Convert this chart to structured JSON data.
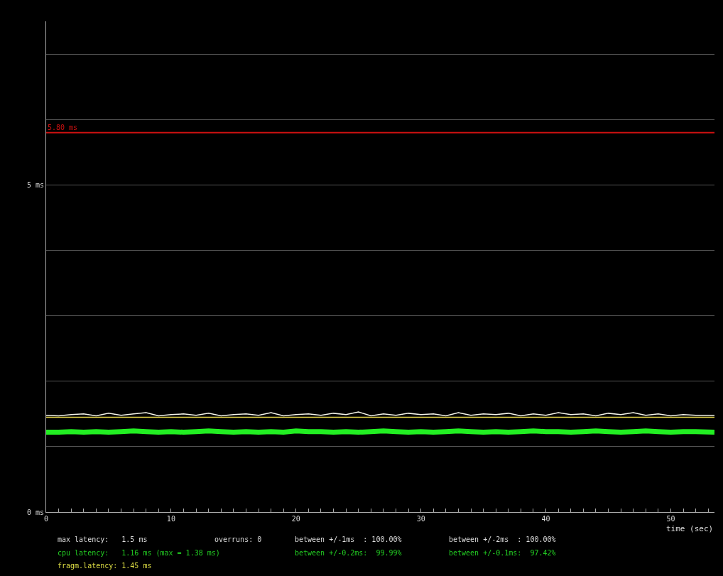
{
  "chart_data": {
    "type": "line",
    "xlabel": "time (sec)",
    "x": [
      0,
      1,
      2,
      3,
      4,
      5,
      6,
      7,
      8,
      9,
      10,
      11,
      12,
      13,
      14,
      15,
      16,
      17,
      18,
      19,
      20,
      21,
      22,
      23,
      24,
      25,
      26,
      27,
      28,
      29,
      30,
      31,
      32,
      33,
      34,
      35,
      36,
      37,
      38,
      39,
      40,
      41,
      42,
      43,
      44,
      45,
      46,
      47,
      48,
      49,
      50,
      51,
      52,
      53.5
    ],
    "series": [
      {
        "color": "#f4f4e8",
        "values": [
          1.48,
          1.47,
          1.49,
          1.5,
          1.47,
          1.51,
          1.48,
          1.5,
          1.52,
          1.47,
          1.49,
          1.5,
          1.48,
          1.51,
          1.47,
          1.49,
          1.5,
          1.48,
          1.52,
          1.47,
          1.49,
          1.5,
          1.48,
          1.51,
          1.49,
          1.53,
          1.47,
          1.5,
          1.48,
          1.51,
          1.49,
          1.5,
          1.47,
          1.52,
          1.48,
          1.5,
          1.49,
          1.51,
          1.47,
          1.5,
          1.48,
          1.52,
          1.49,
          1.5,
          1.47,
          1.51,
          1.49,
          1.52,
          1.48,
          1.5,
          1.47,
          1.49,
          1.48,
          1.48
        ]
      },
      {
        "color": "#e8d84a",
        "x": [
          0,
          53.5
        ],
        "values": [
          1.45,
          1.45
        ]
      },
      {
        "color": "#22ee22",
        "values": [
          1.22,
          1.22,
          1.23,
          1.22,
          1.23,
          1.22,
          1.23,
          1.24,
          1.23,
          1.22,
          1.23,
          1.22,
          1.23,
          1.24,
          1.23,
          1.22,
          1.23,
          1.22,
          1.23,
          1.22,
          1.24,
          1.23,
          1.23,
          1.22,
          1.23,
          1.22,
          1.23,
          1.24,
          1.23,
          1.22,
          1.23,
          1.22,
          1.23,
          1.24,
          1.23,
          1.22,
          1.23,
          1.22,
          1.23,
          1.24,
          1.23,
          1.23,
          1.22,
          1.23,
          1.24,
          1.23,
          1.22,
          1.23,
          1.24,
          1.23,
          1.22,
          1.23,
          1.23,
          1.22
        ]
      }
    ],
    "xlim": [
      0,
      53.5
    ],
    "xticks": [
      0,
      {
        "value": 1,
        "label": null
      },
      {
        "value": 2,
        "label": null
      },
      {
        "value": 3,
        "label": null
      },
      {
        "value": 4,
        "label": null
      },
      {
        "value": 5,
        "label": null
      },
      {
        "value": 6,
        "label": null
      },
      {
        "value": 7,
        "label": null
      },
      {
        "value": 8,
        "label": null
      },
      {
        "value": 9,
        "label": null
      },
      10,
      {
        "value": 11,
        "label": null
      },
      {
        "value": 12,
        "label": null
      },
      {
        "value": 13,
        "label": null
      },
      {
        "value": 14,
        "label": null
      },
      {
        "value": 15,
        "label": null
      },
      {
        "value": 16,
        "label": null
      },
      {
        "value": 17,
        "label": null
      },
      {
        "value": 18,
        "label": null
      },
      {
        "value": 19,
        "label": null
      },
      20,
      {
        "value": 21,
        "label": null
      },
      {
        "value": 22,
        "label": null
      },
      {
        "value": 23,
        "label": null
      },
      {
        "value": 24,
        "label": null
      },
      {
        "value": 25,
        "label": null
      },
      {
        "value": 26,
        "label": null
      },
      {
        "value": 27,
        "label": null
      },
      {
        "value": 28,
        "label": null
      },
      {
        "value": 29,
        "label": null
      },
      30,
      {
        "value": 31,
        "label": null
      },
      {
        "value": 32,
        "label": null
      },
      {
        "value": 33,
        "label": null
      },
      {
        "value": 34,
        "label": null
      },
      {
        "value": 35,
        "label": null
      },
      {
        "value": 36,
        "label": null
      },
      {
        "value": 37,
        "label": null
      },
      {
        "value": 38,
        "label": null
      },
      {
        "value": 39,
        "label": null
      },
      40,
      {
        "value": 41,
        "label": null
      },
      {
        "value": 42,
        "label": null
      },
      {
        "value": 43,
        "label": null
      },
      {
        "value": 44,
        "label": null
      },
      {
        "value": 45,
        "label": null
      },
      {
        "value": 46,
        "label": null
      },
      {
        "value": 47,
        "label": null
      },
      {
        "value": 48,
        "label": null
      },
      {
        "value": 49,
        "label": null
      },
      50,
      {
        "value": 51,
        "label": null
      },
      {
        "value": 52,
        "label": null
      },
      {
        "value": 53,
        "label": null
      }
    ],
    "ylim": [
      0,
      7.5
    ],
    "yticks": [
      {
        "value": 0,
        "label": "0 ms"
      },
      {
        "value": 1,
        "label": null
      },
      {
        "value": 2,
        "label": null
      },
      {
        "value": 3,
        "label": null
      },
      {
        "value": 4,
        "label": null
      },
      {
        "value": 5,
        "label": "5 ms"
      },
      {
        "value": 6,
        "label": null
      },
      {
        "value": 7,
        "label": null
      }
    ],
    "grid": "y",
    "ref_lines": [
      {
        "axis": "y",
        "value": 5.8,
        "label": "5.80 ms",
        "color": "#cc1111"
      }
    ],
    "annotations": [
      "max latency:   1.5 ms",
      "overruns: 0",
      "between +/-1ms  : 100.00%",
      "between +/-2ms  : 100.00%",
      "cpu latency:   1.16 ms (max = 1.38 ms)",
      "between +/-0.2ms:  99.99%",
      "between +/-0.1ms:  97.42%",
      "fragm.latency: 1.45 ms"
    ]
  }
}
